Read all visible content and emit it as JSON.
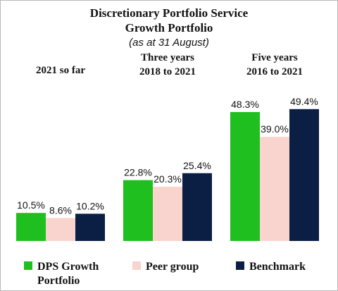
{
  "chart_data": {
    "type": "bar",
    "title": "Discretionary Portfolio Service",
    "subtitle": "Growth Portfolio",
    "note": "(as at 31 August)",
    "groups": [
      {
        "label_lines": [
          "2021 so far"
        ],
        "values": [
          10.5,
          8.6,
          10.2
        ],
        "value_labels": [
          "10.5%",
          "8.6%",
          "10.2%"
        ]
      },
      {
        "label_lines": [
          "Three years",
          "2018 to 2021"
        ],
        "values": [
          22.8,
          20.3,
          25.4
        ],
        "value_labels": [
          "22.8%",
          "20.3%",
          "25.4%"
        ]
      },
      {
        "label_lines": [
          "Five years",
          "2016 to 2021"
        ],
        "values": [
          48.3,
          39.0,
          49.4
        ],
        "value_labels": [
          "48.3%",
          "39.0%",
          "49.4%"
        ]
      }
    ],
    "series": [
      {
        "name_lines": [
          "DPS Growth",
          "Portfolio"
        ],
        "color": "#1fbf1f"
      },
      {
        "name_lines": [
          "Peer group"
        ],
        "color": "#f9d3cd"
      },
      {
        "name_lines": [
          "Benchmark"
        ],
        "color": "#0b1f45"
      }
    ],
    "ylim": [
      0,
      60
    ],
    "grid": false,
    "legend": "bottom"
  }
}
